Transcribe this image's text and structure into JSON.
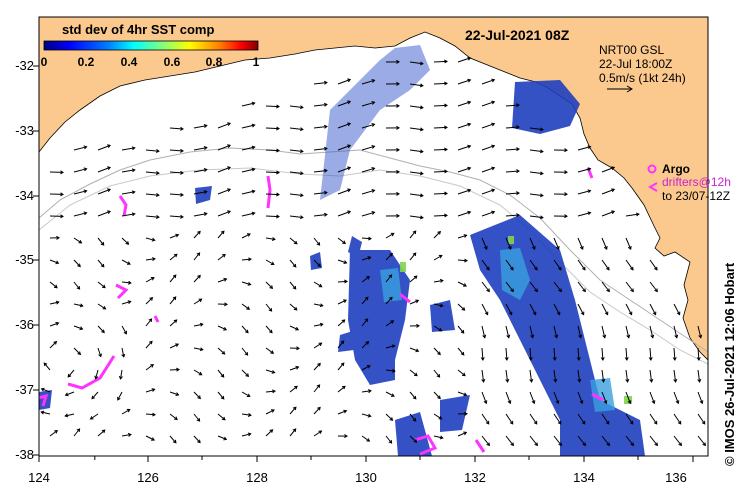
{
  "title": "std dev of 4hr SST comp",
  "timestamp": "22-Jul-2021 08Z",
  "colorbar": {
    "ticks": [
      "0",
      "0.2",
      "0.4",
      "0.6",
      "0.8",
      "1"
    ],
    "colors": [
      "#00007f",
      "#0000ff",
      "#007fff",
      "#00ffff",
      "#7fff7f",
      "#ffff00",
      "#ff7f00",
      "#ff0000",
      "#7f0000"
    ]
  },
  "current_info": {
    "line1": "NRT00 GSL",
    "line2": "22-Jul 18:00Z",
    "line3": "0.5m/s (1kt 24h)"
  },
  "legend": {
    "argo_label": "Argo",
    "drifters_label": "drifters@12h",
    "drifters_until": "to 23/07-12Z",
    "argo_color": "#ff33ff"
  },
  "axes": {
    "x_ticks": [
      "124",
      "126",
      "128",
      "130",
      "132",
      "134",
      "136"
    ],
    "y_ticks": [
      "-32",
      "-33",
      "-34",
      "-35",
      "-36",
      "-37",
      "-38"
    ]
  },
  "credit": "© IMOS 26-Jul-2021 12:06 Hobart",
  "colors": {
    "land": "#fbc98e",
    "sst_high": "#1133aa",
    "sst_mid": "#4488ff",
    "argo": "#ff33ff"
  }
}
